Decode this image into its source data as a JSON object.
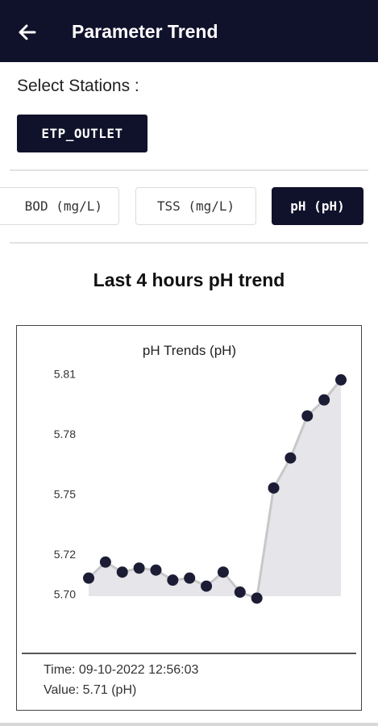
{
  "appbar": {
    "title": "Parameter Trend",
    "back_icon": "arrow-left-icon",
    "background": "#10112b"
  },
  "stations": {
    "label": "Select Stations :",
    "selected": "ETP_OUTLET"
  },
  "parameter_tabs": [
    {
      "label": "BOD (mg/L)",
      "active": false
    },
    {
      "label": "TSS (mg/L)",
      "active": false
    },
    {
      "label": "pH (pH)",
      "active": true
    }
  ],
  "trend_heading": "Last 4 hours pH trend",
  "chart_data": {
    "type": "area",
    "title": "pH Trends (pH)",
    "xlabel": "",
    "ylabel": "",
    "y_ticks": [
      "5.70",
      "5.72",
      "5.75",
      "5.78",
      "5.81"
    ],
    "ylim": [
      5.699,
      5.811
    ],
    "grid": false,
    "legend": "none",
    "series": [
      {
        "values": [
          5.708,
          5.716,
          5.711,
          5.713,
          5.712,
          5.707,
          5.708,
          5.704,
          5.711,
          5.701,
          5.698,
          5.753,
          5.768,
          5.789,
          5.797,
          5.807
        ]
      }
    ],
    "colors": {
      "line": "#c8c8c8",
      "fill": "#e5e5ea",
      "point": "#1c1d35"
    }
  },
  "tooltip": {
    "time": "Time: 09-10-2022 12:56:03",
    "value": "Value: 5.71 (pH)"
  }
}
